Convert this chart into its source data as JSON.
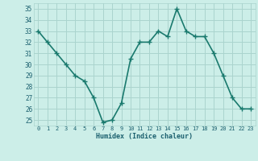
{
  "x": [
    0,
    1,
    2,
    3,
    4,
    5,
    6,
    7,
    8,
    9,
    10,
    11,
    12,
    13,
    14,
    15,
    16,
    17,
    18,
    19,
    20,
    21,
    22,
    23
  ],
  "y": [
    33,
    32,
    31,
    30,
    29,
    28.5,
    27,
    24.8,
    25,
    26.5,
    30.5,
    32,
    32,
    33,
    32.5,
    35,
    33,
    32.5,
    32.5,
    31,
    29,
    27,
    26,
    26
  ],
  "line_color": "#1a7a6e",
  "marker_color": "#1a7a6e",
  "bg_color": "#cceee8",
  "grid_color": "#aad4ce",
  "xlabel": "Humidex (Indice chaleur)",
  "xlim": [
    -0.5,
    23.5
  ],
  "ylim": [
    24.5,
    35.5
  ],
  "yticks": [
    25,
    26,
    27,
    28,
    29,
    30,
    31,
    32,
    33,
    34,
    35
  ],
  "xticks": [
    0,
    1,
    2,
    3,
    4,
    5,
    6,
    7,
    8,
    9,
    10,
    11,
    12,
    13,
    14,
    15,
    16,
    17,
    18,
    19,
    20,
    21,
    22,
    23
  ],
  "tick_color": "#1a5f6e",
  "font_family": "monospace",
  "line_width": 1.2,
  "marker_size": 4
}
